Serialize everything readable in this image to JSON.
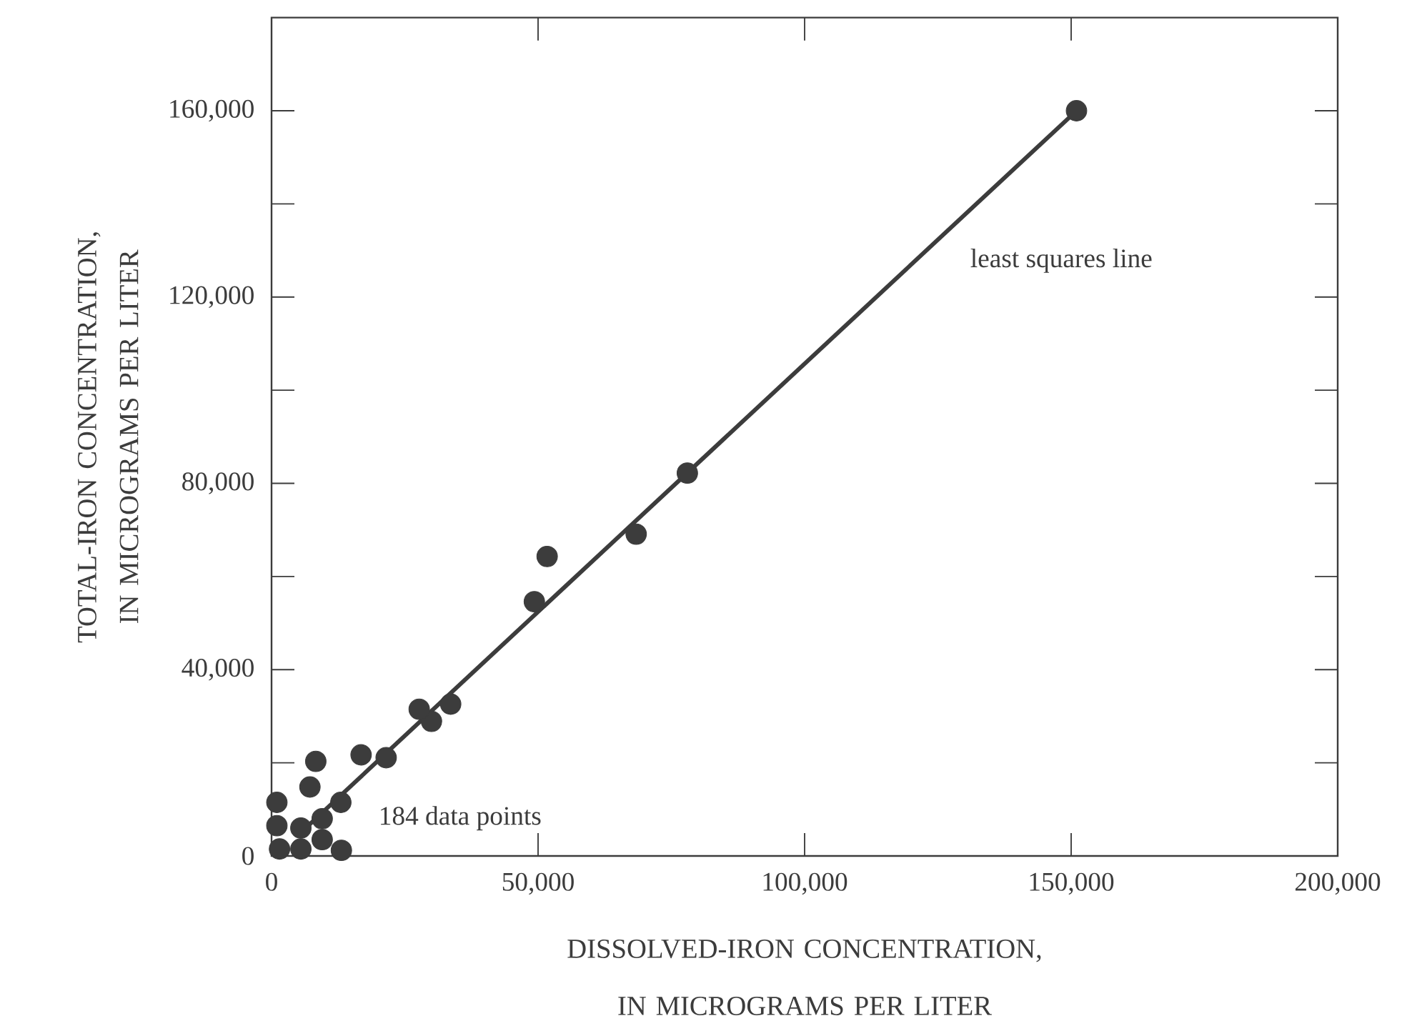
{
  "chart_data": {
    "type": "scatter",
    "xlabel": "DISSOLVED-IRON CONCENTRATION, IN MICROGRAMS PER LITER",
    "ylabel": "TOTAL-IRON CONCENTRATION, IN MICROGRAMS PER LITER",
    "xlim": [
      0,
      200000
    ],
    "ylim": [
      0,
      180000
    ],
    "xticks": [
      {
        "value": 0,
        "label": "0"
      },
      {
        "value": 50000,
        "label": "50,000"
      },
      {
        "value": 100000,
        "label": "100,000"
      },
      {
        "value": 150000,
        "label": "150,000"
      },
      {
        "value": 200000,
        "label": "200,000"
      }
    ],
    "yticks": [
      {
        "value": 0,
        "label": "0"
      },
      {
        "value": 20000,
        "label": null
      },
      {
        "value": 40000,
        "label": "40,000"
      },
      {
        "value": 60000,
        "label": null
      },
      {
        "value": 80000,
        "label": "80,000"
      },
      {
        "value": 100000,
        "label": null
      },
      {
        "value": 120000,
        "label": "120,000"
      },
      {
        "value": 140000,
        "label": null
      },
      {
        "value": 160000,
        "label": "160,000"
      }
    ],
    "series": [
      {
        "marker": "circle",
        "color": "#3c3c3c",
        "x": [
          151000,
          78000,
          68400,
          51700,
          49300,
          33600,
          30000,
          27700,
          21500,
          16800,
          8300,
          7200,
          13100,
          1000,
          1000,
          1500,
          5500,
          5500,
          9500,
          9500,
          13000
        ],
        "values": [
          160000,
          82200,
          69100,
          64300,
          54600,
          32600,
          28900,
          31500,
          21100,
          21700,
          20300,
          14800,
          1200,
          11500,
          6500,
          1500,
          6000,
          1500,
          8000,
          3500,
          11500
        ]
      },
      {
        "type": "line",
        "color": "#3c3c3c",
        "x": [
          5000,
          151000
        ],
        "values": [
          4500,
          160000
        ]
      }
    ],
    "annotations": [
      "184 data points",
      "least squares line"
    ]
  }
}
